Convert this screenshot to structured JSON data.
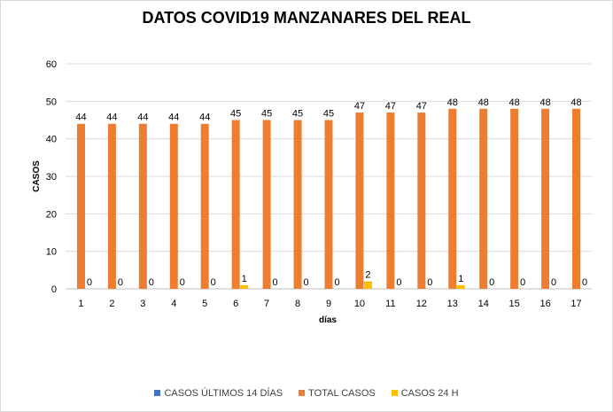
{
  "chart_data": {
    "type": "bar",
    "title": "DATOS COVID19 MANZANARES DEL REAL",
    "xlabel": "días",
    "ylabel": "CASOS",
    "ylim": [
      0,
      60
    ],
    "yticks": [
      0,
      10,
      20,
      30,
      40,
      50,
      60
    ],
    "grid": true,
    "legend_position": "bottom",
    "categories": [
      "1",
      "2",
      "3",
      "4",
      "5",
      "6",
      "7",
      "8",
      "9",
      "10",
      "11",
      "12",
      "13",
      "14",
      "15",
      "16",
      "17"
    ],
    "series": [
      {
        "name": "CASOS ÚLTIMOS 14 DÍAS",
        "color": "#4472c4",
        "values": [
          0,
          0,
          0,
          0,
          0,
          0,
          0,
          0,
          0,
          0,
          0,
          0,
          0,
          0,
          0,
          0,
          0
        ],
        "labels_shown": false
      },
      {
        "name": "TOTAL CASOS",
        "color": "#ed7d31",
        "values": [
          44,
          44,
          44,
          44,
          44,
          45,
          45,
          45,
          45,
          47,
          47,
          47,
          48,
          48,
          48,
          48,
          48
        ],
        "labels_shown": true
      },
      {
        "name": "CASOS 24 H",
        "color": "#ffc000",
        "values": [
          0,
          0,
          0,
          0,
          0,
          1,
          0,
          0,
          0,
          2,
          0,
          0,
          1,
          0,
          0,
          0,
          0
        ],
        "labels_shown": true
      }
    ]
  }
}
